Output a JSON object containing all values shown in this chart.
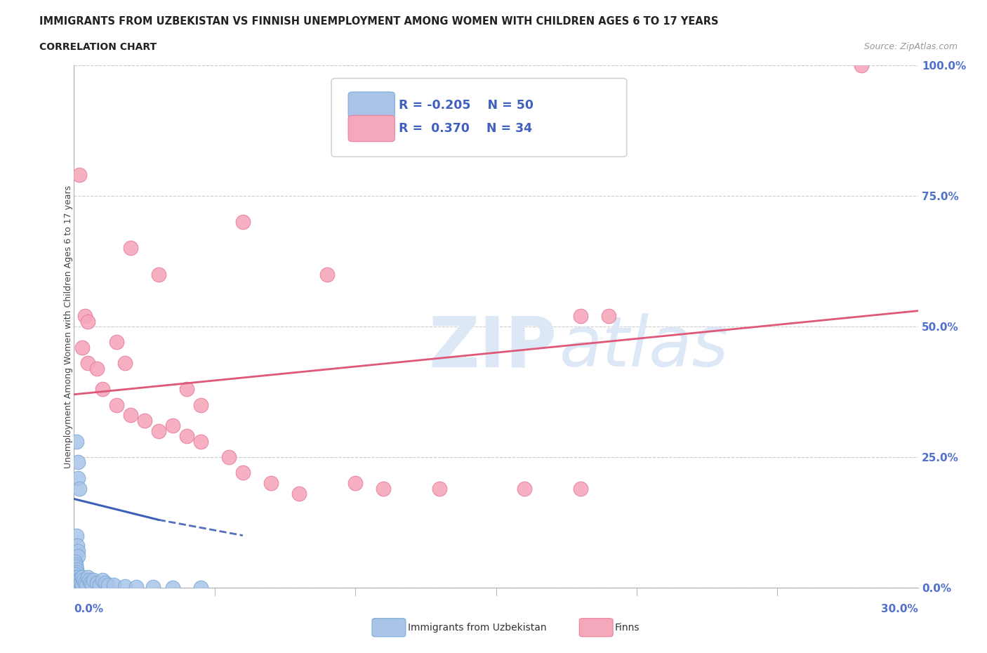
{
  "title": "IMMIGRANTS FROM UZBEKISTAN VS FINNISH UNEMPLOYMENT AMONG WOMEN WITH CHILDREN AGES 6 TO 17 YEARS",
  "subtitle": "CORRELATION CHART",
  "source": "Source: ZipAtlas.com",
  "legend_blue_label": "Immigrants from Uzbekistan",
  "legend_pink_label": "Finns",
  "ylabel": "Unemployment Among Women with Children Ages 6 to 17 years",
  "ytick_labels": [
    "0.0%",
    "25.0%",
    "50.0%",
    "75.0%",
    "100.0%"
  ],
  "ytick_vals": [
    0,
    25,
    50,
    75,
    100
  ],
  "R_blue": -0.205,
  "N_blue": 50,
  "R_pink": 0.37,
  "N_pink": 34,
  "blue_color": "#aac4e8",
  "pink_color": "#f5a8bc",
  "blue_edge_color": "#7aaad8",
  "pink_edge_color": "#e880a0",
  "blue_line_color": "#4060b8",
  "pink_line_color": "#e05878",
  "xmin": 0,
  "xmax": 30,
  "ymin": 0,
  "ymax": 100,
  "blue_scatter": [
    [
      0.1,
      28
    ],
    [
      0.15,
      24
    ],
    [
      0.15,
      21
    ],
    [
      0.2,
      19
    ],
    [
      0.1,
      10
    ],
    [
      0.12,
      8
    ],
    [
      0.13,
      7
    ],
    [
      0.14,
      6
    ],
    [
      0.05,
      5
    ],
    [
      0.06,
      4.5
    ],
    [
      0.07,
      4
    ],
    [
      0.08,
      3.5
    ],
    [
      0.09,
      3
    ],
    [
      0.05,
      2.5
    ],
    [
      0.06,
      2
    ],
    [
      0.07,
      1.8
    ],
    [
      0.08,
      1.5
    ],
    [
      0.09,
      1.2
    ],
    [
      0.04,
      1
    ],
    [
      0.05,
      0.8
    ],
    [
      0.06,
      0.5
    ],
    [
      0.07,
      0.3
    ],
    [
      0.12,
      2
    ],
    [
      0.13,
      1.5
    ],
    [
      0.14,
      1.2
    ],
    [
      0.15,
      1
    ],
    [
      0.2,
      1.5
    ],
    [
      0.22,
      1
    ],
    [
      0.25,
      0.8
    ],
    [
      0.28,
      0.5
    ],
    [
      0.3,
      2
    ],
    [
      0.35,
      1.5
    ],
    [
      0.4,
      1
    ],
    [
      0.45,
      0.5
    ],
    [
      0.5,
      2
    ],
    [
      0.55,
      1.5
    ],
    [
      0.6,
      1
    ],
    [
      0.65,
      0.5
    ],
    [
      0.7,
      1.5
    ],
    [
      0.8,
      1
    ],
    [
      0.9,
      0.5
    ],
    [
      1.0,
      1.5
    ],
    [
      1.1,
      1
    ],
    [
      1.2,
      0.5
    ],
    [
      1.4,
      0.5
    ],
    [
      1.8,
      0.3
    ],
    [
      2.2,
      0.2
    ],
    [
      2.8,
      0.1
    ],
    [
      3.5,
      0.05
    ],
    [
      4.5,
      0.02
    ]
  ],
  "pink_scatter": [
    [
      0.3,
      46
    ],
    [
      0.5,
      43
    ],
    [
      0.8,
      42
    ],
    [
      1.0,
      38
    ],
    [
      1.5,
      35
    ],
    [
      2.0,
      33
    ],
    [
      2.5,
      32
    ],
    [
      3.0,
      30
    ],
    [
      3.5,
      31
    ],
    [
      4.0,
      29
    ],
    [
      4.5,
      28
    ],
    [
      5.5,
      25
    ],
    [
      6.0,
      22
    ],
    [
      7.0,
      20
    ],
    [
      8.0,
      18
    ],
    [
      2.0,
      65
    ],
    [
      3.0,
      60
    ],
    [
      0.4,
      52
    ],
    [
      0.5,
      51
    ],
    [
      18.0,
      52
    ],
    [
      19.0,
      52
    ],
    [
      1.5,
      47
    ],
    [
      1.8,
      43
    ],
    [
      4.0,
      38
    ],
    [
      4.5,
      35
    ],
    [
      10.0,
      20
    ],
    [
      11.0,
      19
    ],
    [
      13.0,
      19
    ],
    [
      16.0,
      19
    ],
    [
      18.0,
      19
    ],
    [
      28.0,
      100
    ],
    [
      0.2,
      79
    ],
    [
      6.0,
      70
    ],
    [
      9.0,
      60
    ]
  ],
  "pink_line": [
    [
      0,
      37
    ],
    [
      30,
      53
    ]
  ],
  "blue_line_solid": [
    [
      0,
      17
    ],
    [
      3.0,
      13
    ]
  ],
  "blue_line_dashed": [
    [
      3.0,
      13
    ],
    [
      6.0,
      10
    ]
  ]
}
